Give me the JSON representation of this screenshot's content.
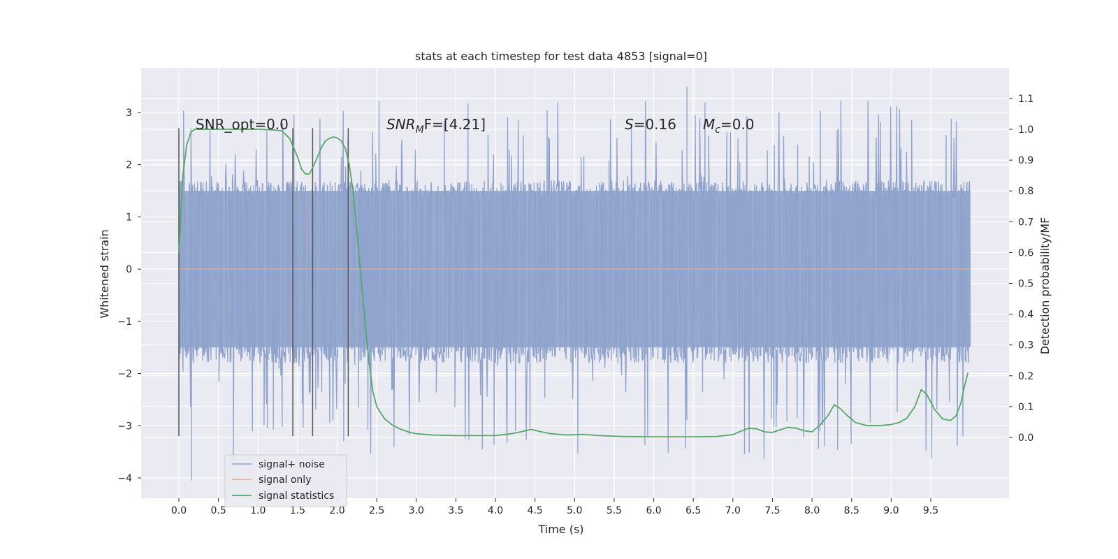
{
  "chart_data": {
    "type": "line",
    "title": "stats at each timestep for test data 4853 [signal=0]",
    "xlabel": "Time (s)",
    "ylabel_left": "Whitened strain",
    "ylabel_right": "Detection probability/MF",
    "xlim": [
      -0.2,
      10.5
    ],
    "ylim_left": [
      -4.4,
      3.85
    ],
    "ylim_right": [
      -0.2,
      1.2
    ],
    "xticks": [
      0.0,
      0.5,
      1.0,
      1.5,
      2.0,
      2.5,
      3.0,
      3.5,
      4.0,
      4.5,
      5.0,
      5.5,
      6.0,
      6.5,
      7.0,
      7.5,
      8.0,
      8.5,
      9.0,
      9.5
    ],
    "xtick_labels": [
      "0.0",
      "0.5",
      "1.0",
      "1.5",
      "2.0",
      "2.5",
      "3.0",
      "3.5",
      "4.0",
      "4.5",
      "5.0",
      "5.5",
      "6.0",
      "6.5",
      "7.0",
      "7.5",
      "8.0",
      "8.5",
      "9.0",
      "9.5"
    ],
    "yticks_left": [
      3,
      2,
      1,
      0,
      -1,
      -2,
      -3,
      -4
    ],
    "ytick_labels_left": [
      "3",
      "2",
      "1",
      "0",
      "−1",
      "−2",
      "−3",
      "−4"
    ],
    "yticks_right": [
      1.1,
      1.0,
      0.9,
      0.8,
      0.7,
      0.6,
      0.5,
      0.4,
      0.3,
      0.2,
      0.1,
      0.0
    ],
    "ytick_labels_right": [
      "1.1",
      "1.0",
      "0.9",
      "0.8",
      "0.7",
      "0.6",
      "0.5",
      "0.4",
      "0.3",
      "0.2",
      "0.1",
      "0.0"
    ],
    "grid": true,
    "legend_placement": "lower-left",
    "legend": [
      {
        "label": "signal+ noise",
        "color": "#8fa3cc"
      },
      {
        "label": "signal only",
        "color": "#e4a58c"
      },
      {
        "label": "signal statistics",
        "color": "#55a868"
      }
    ],
    "annotations": {
      "snr_opt": "SNR_opt=0.0",
      "snr_mf_base": "SNR",
      "snr_mf_sub": "M",
      "snr_mf_rest": "F=[4.21]",
      "s_sym": "S",
      "s_val": "=0.16",
      "mc_sym": "M",
      "mc_sub": "c",
      "mc_val": "=0.0"
    },
    "signal_noise": {
      "x_start": 0.0,
      "x_end": 10.0,
      "band_low": -1.8,
      "band_high": 1.7,
      "min": -4.05,
      "max": 3.5
    },
    "signal_only": {
      "x": [
        0.0,
        10.0
      ],
      "y": [
        0.0,
        0.0
      ]
    },
    "vertical_markers": {
      "x": [
        0.0,
        1.44,
        1.69,
        2.14
      ],
      "y_range": [
        -3.2,
        2.7
      ]
    },
    "signal_statistics": {
      "x": [
        0.0,
        0.05,
        0.1,
        0.15,
        0.2,
        0.3,
        0.5,
        0.8,
        1.0,
        1.2,
        1.3,
        1.4,
        1.45,
        1.5,
        1.55,
        1.6,
        1.65,
        1.7,
        1.75,
        1.8,
        1.85,
        1.9,
        1.95,
        2.0,
        2.05,
        2.1,
        2.15,
        2.2,
        2.25,
        2.3,
        2.35,
        2.4,
        2.45,
        2.5,
        2.55,
        2.6,
        2.7,
        2.8,
        2.9,
        3.0,
        3.2,
        3.5,
        4.0,
        4.2,
        4.35,
        4.45,
        4.55,
        4.7,
        4.9,
        5.1,
        5.3,
        5.6,
        6.0,
        6.5,
        6.8,
        7.0,
        7.1,
        7.2,
        7.3,
        7.4,
        7.5,
        7.6,
        7.7,
        7.8,
        7.9,
        8.0,
        8.1,
        8.2,
        8.28,
        8.35,
        8.45,
        8.55,
        8.7,
        8.85,
        9.0,
        9.1,
        9.2,
        9.3,
        9.38,
        9.45,
        9.55,
        9.65,
        9.75,
        9.82,
        9.88,
        9.93,
        9.97
      ],
      "y": [
        0.6,
        0.85,
        0.95,
        0.99,
        1.0,
        1.0,
        1.0,
        1.0,
        1.0,
        0.998,
        0.995,
        0.97,
        0.94,
        0.91,
        0.87,
        0.855,
        0.855,
        0.88,
        0.91,
        0.94,
        0.962,
        0.97,
        0.975,
        0.972,
        0.963,
        0.94,
        0.89,
        0.8,
        0.67,
        0.52,
        0.38,
        0.25,
        0.15,
        0.1,
        0.08,
        0.06,
        0.04,
        0.027,
        0.018,
        0.012,
        0.008,
        0.006,
        0.006,
        0.012,
        0.02,
        0.026,
        0.02,
        0.012,
        0.008,
        0.01,
        0.006,
        0.003,
        0.002,
        0.002,
        0.003,
        0.009,
        0.02,
        0.03,
        0.028,
        0.018,
        0.016,
        0.025,
        0.033,
        0.03,
        0.022,
        0.018,
        0.04,
        0.07,
        0.106,
        0.095,
        0.07,
        0.048,
        0.038,
        0.038,
        0.042,
        0.048,
        0.063,
        0.1,
        0.155,
        0.14,
        0.09,
        0.06,
        0.055,
        0.07,
        0.11,
        0.17,
        0.21
      ]
    }
  }
}
